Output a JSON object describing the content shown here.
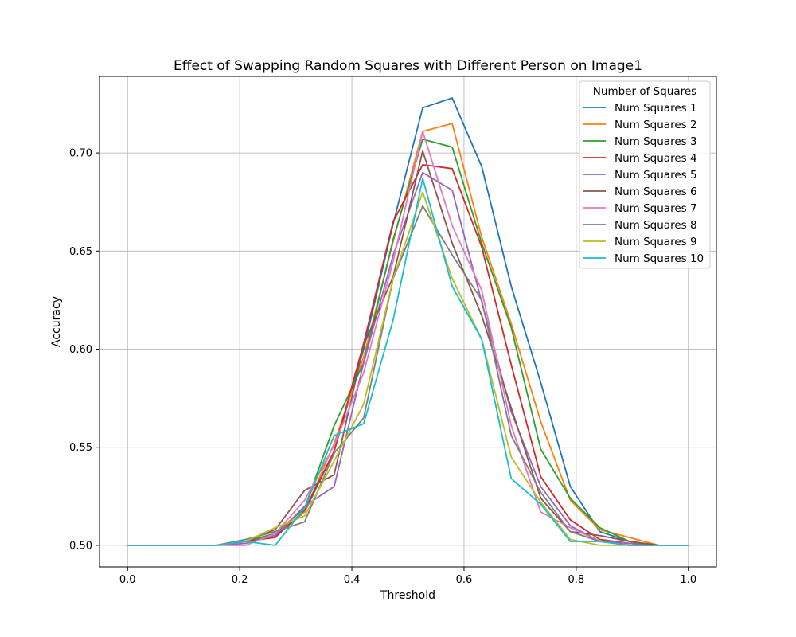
{
  "chart_data": {
    "type": "line",
    "title": "Effect of Swapping Random Squares with Different Person on Image1",
    "xlabel": "Threshold",
    "ylabel": "Accuracy",
    "xlim": [
      -0.05,
      1.05
    ],
    "ylim": [
      0.489,
      0.739
    ],
    "xticks": [
      0.0,
      0.2,
      0.4,
      0.6,
      0.8,
      1.0
    ],
    "xtick_labels": [
      "0.0",
      "0.2",
      "0.4",
      "0.6",
      "0.8",
      "1.0"
    ],
    "yticks": [
      0.5,
      0.55,
      0.6,
      0.65,
      0.7
    ],
    "ytick_labels": [
      "0.50",
      "0.55",
      "0.60",
      "0.65",
      "0.70"
    ],
    "grid": true,
    "legend": {
      "title": "Number of Squares",
      "placement": "top-right"
    },
    "x": [
      0.0,
      0.0526,
      0.1053,
      0.1579,
      0.2105,
      0.2632,
      0.3158,
      0.3684,
      0.4211,
      0.4737,
      0.5263,
      0.5789,
      0.6316,
      0.6842,
      0.7368,
      0.7895,
      0.8421,
      0.8947,
      0.9474,
      1.0
    ],
    "series": [
      {
        "name": "Num Squares 1",
        "color": "#1f77b4",
        "values": [
          0.5,
          0.5,
          0.5,
          0.5,
          0.502,
          0.505,
          0.517,
          0.548,
          0.6,
          0.664,
          0.723,
          0.728,
          0.693,
          0.632,
          0.583,
          0.53,
          0.507,
          0.502,
          0.5,
          0.5
        ]
      },
      {
        "name": "Num Squares 2",
        "color": "#ff7f0e",
        "values": [
          0.5,
          0.5,
          0.5,
          0.5,
          0.502,
          0.506,
          0.517,
          0.552,
          0.596,
          0.655,
          0.711,
          0.715,
          0.657,
          0.613,
          0.563,
          0.523,
          0.508,
          0.504,
          0.5,
          0.5
        ]
      },
      {
        "name": "Num Squares 3",
        "color": "#2ca02c",
        "values": [
          0.5,
          0.5,
          0.5,
          0.5,
          0.502,
          0.506,
          0.519,
          0.561,
          0.593,
          0.656,
          0.707,
          0.703,
          0.654,
          0.611,
          0.549,
          0.524,
          0.509,
          0.502,
          0.5,
          0.5
        ]
      },
      {
        "name": "Num Squares 4",
        "color": "#d62728",
        "values": [
          0.5,
          0.5,
          0.5,
          0.5,
          0.502,
          0.504,
          0.518,
          0.548,
          0.603,
          0.665,
          0.694,
          0.692,
          0.652,
          0.592,
          0.535,
          0.513,
          0.503,
          0.501,
          0.5,
          0.5
        ]
      },
      {
        "name": "Num Squares 5",
        "color": "#9467bd",
        "values": [
          0.5,
          0.5,
          0.5,
          0.5,
          0.501,
          0.505,
          0.52,
          0.53,
          0.593,
          0.648,
          0.69,
          0.681,
          0.624,
          0.568,
          0.53,
          0.51,
          0.502,
          0.501,
          0.5,
          0.5
        ]
      },
      {
        "name": "Num Squares 6",
        "color": "#8c564b",
        "values": [
          0.5,
          0.5,
          0.5,
          0.5,
          0.502,
          0.508,
          0.528,
          0.536,
          0.602,
          0.637,
          0.701,
          0.654,
          0.617,
          0.57,
          0.524,
          0.507,
          0.505,
          0.502,
          0.5,
          0.5
        ]
      },
      {
        "name": "Num Squares 7",
        "color": "#e377c2",
        "values": [
          0.5,
          0.5,
          0.5,
          0.5,
          0.5,
          0.506,
          0.523,
          0.551,
          0.588,
          0.645,
          0.711,
          0.663,
          0.63,
          0.561,
          0.517,
          0.509,
          0.502,
          0.5,
          0.5,
          0.5
        ]
      },
      {
        "name": "Num Squares 8",
        "color": "#7f7f7f",
        "values": [
          0.5,
          0.5,
          0.5,
          0.5,
          0.503,
          0.507,
          0.512,
          0.547,
          0.565,
          0.636,
          0.673,
          0.648,
          0.625,
          0.556,
          0.527,
          0.507,
          0.502,
          0.5,
          0.5,
          0.5
        ]
      },
      {
        "name": "Num Squares 9",
        "color": "#bcbd22",
        "values": [
          0.5,
          0.5,
          0.5,
          0.5,
          0.502,
          0.509,
          0.515,
          0.543,
          0.572,
          0.636,
          0.68,
          0.636,
          0.605,
          0.545,
          0.522,
          0.503,
          0.5,
          0.5,
          0.5,
          0.5
        ]
      },
      {
        "name": "Num Squares 10",
        "color": "#17becf",
        "values": [
          0.5,
          0.5,
          0.5,
          0.5,
          0.502,
          0.5,
          0.519,
          0.556,
          0.562,
          0.615,
          0.687,
          0.632,
          0.605,
          0.534,
          0.521,
          0.502,
          0.502,
          0.5,
          0.5,
          0.5
        ]
      }
    ]
  }
}
